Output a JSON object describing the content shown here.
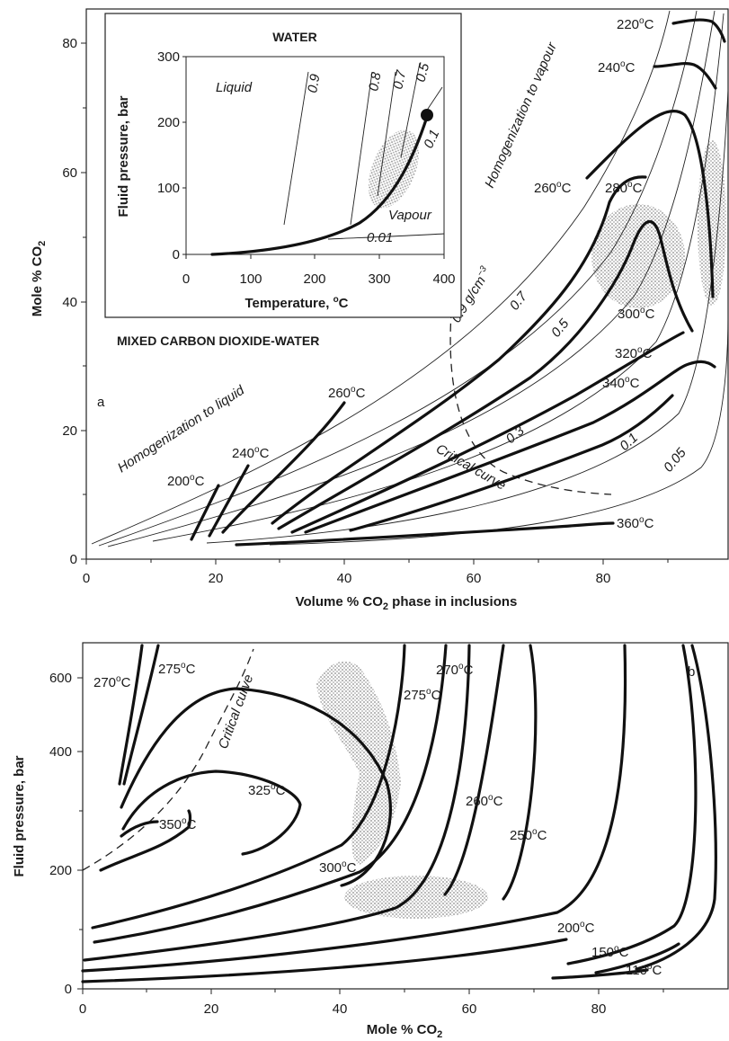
{
  "panel_a": {
    "letter": "a",
    "y_axis_label": "Mole % CO",
    "y_axis_sub": "2",
    "x_axis_label": "Volume % CO",
    "x_axis_sub": "2",
    "x_axis_suffix": " phase in inclusions",
    "x_ticks": [
      "0",
      "20",
      "40",
      "60",
      "80"
    ],
    "y_ticks": [
      "0",
      "20",
      "40",
      "60",
      "80"
    ],
    "title_mixed": "MIXED CARBON DIOXIDE-WATER",
    "homog_liquid": "Homogenization to liquid",
    "homog_vapour": "Homogenization to vapour",
    "critical_curve": "Critical curve",
    "isochores": [
      "0.9 g/cm",
      "0.7",
      "0.5",
      "0.3",
      "0.1",
      "0.05"
    ],
    "density_exp": "−3",
    "temps": [
      "200",
      "240",
      "260",
      "220",
      "240",
      "260",
      "280",
      "300",
      "320",
      "340",
      "360"
    ],
    "degree_unit": "C"
  },
  "inset": {
    "title": "WATER",
    "y_axis_label": "Fluid pressure, bar",
    "x_axis_label": "Temperature, ",
    "x_axis_unit": "C",
    "x_ticks": [
      "0",
      "100",
      "200",
      "300",
      "400"
    ],
    "y_ticks": [
      "0",
      "100",
      "200",
      "300"
    ],
    "liquid": "Liquid",
    "vapour": "Vapour",
    "isochores": [
      "0.9",
      "0.8",
      "0.7",
      "0.5",
      "0.1",
      "0.01"
    ]
  },
  "panel_b": {
    "letter": "b",
    "y_axis_label": "Fluid pressure, bar",
    "x_axis_label": "Mole % CO",
    "x_axis_sub": "2",
    "x_ticks": [
      "0",
      "20",
      "40",
      "60",
      "80"
    ],
    "y_ticks": [
      "0",
      "200",
      "400",
      "600"
    ],
    "critical_curve": "Critical curve",
    "temps": [
      "270",
      "275",
      "325",
      "350",
      "300",
      "270",
      "275",
      "260",
      "250",
      "200",
      "150",
      "110"
    ],
    "degree_unit": "C"
  }
}
